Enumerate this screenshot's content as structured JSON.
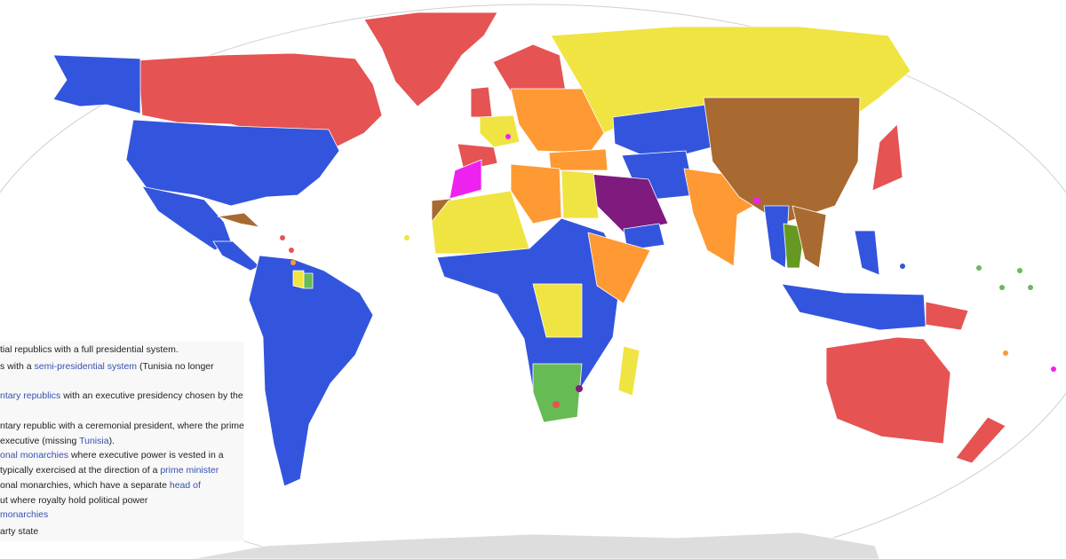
{
  "colors": {
    "presidential": "#3355dd",
    "semi_presidential": "#ff9933",
    "parliamentary_exec_president": "#66bb55",
    "parliamentary_ceremonial": "#f0e442",
    "constitutional_monarchy": "#e55353",
    "constitutional_monarchy_royal_power": "#ee22ee",
    "absolute_monarchy": "#7f1a7f",
    "one_party": "#a86a30",
    "military": "#669922",
    "antarctica": "#dddddd"
  },
  "legend": {
    "lines": [
      [
        {
          "t": "tial republics with a full presidential system."
        }
      ],
      [
        {
          "t": "s with a "
        },
        {
          "t": "semi-presidential system",
          "link": true
        },
        {
          "t": " (Tunisia no longer"
        }
      ],
      [
        {
          "t": "ntary republics",
          "link": true
        },
        {
          "t": " with an executive presidency chosen by the"
        }
      ],
      [
        {
          "t": "ntary republic with a ceremonial president, where the prime"
        }
      ],
      [
        {
          "t": " executive (missing "
        },
        {
          "t": "Tunisia",
          "link": true
        },
        {
          "t": ")."
        }
      ],
      [
        {
          "t": "onal monarchies",
          "link": true
        },
        {
          "t": " where executive power is vested in a"
        }
      ],
      [
        {
          "t": "typically exercised at the direction of a "
        },
        {
          "t": "prime minister",
          "link": true
        }
      ],
      [
        {
          "t": "onal monarchies, which have a separate "
        },
        {
          "t": "head of",
          "link": true
        }
      ],
      [
        {
          "t": "ut where royalty hold political power"
        }
      ],
      [
        {
          "t": "monarchies",
          "link": true
        }
      ],
      [
        {
          "t": "arty state"
        }
      ]
    ]
  }
}
